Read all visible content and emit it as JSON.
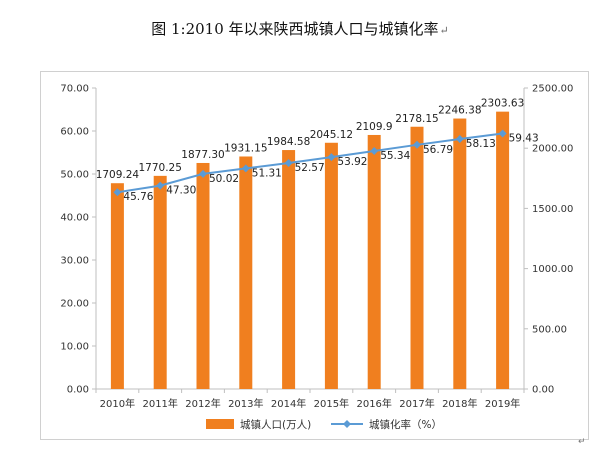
{
  "title": "图 1:2010 年以来陕西城镇人口与城镇化率",
  "title_mark": "↵",
  "trail_mark": "↵",
  "chart_data": {
    "type": "bar+line",
    "categories": [
      "2010年",
      "2011年",
      "2012年",
      "2013年",
      "2014年",
      "2015年",
      "2016年",
      "2017年",
      "2018年",
      "2019年"
    ],
    "series": [
      {
        "name": "城镇人口(万人)",
        "type": "bar",
        "axis": "right",
        "color": "#F07F1F",
        "values": [
          1709.24,
          1770.25,
          1877.3,
          1931.15,
          1984.58,
          2045.12,
          2109.9,
          2178.15,
          2246.38,
          2303.63
        ],
        "labels": [
          "1709.24",
          "1770.25",
          "1877.30",
          "1931.15",
          "1984.58",
          "2045.12",
          "2109.9",
          "2178.15",
          "2246.38",
          "2303.63"
        ]
      },
      {
        "name": "城镇化率（%）",
        "type": "line",
        "axis": "left",
        "color": "#5B9BD5",
        "values": [
          45.76,
          47.3,
          50.02,
          51.31,
          52.57,
          53.92,
          55.34,
          56.79,
          58.13,
          59.43
        ],
        "labels": [
          "45.76",
          "47.30",
          "50.02",
          "51.31",
          "52.57",
          "53.92",
          "55.34",
          "56.79",
          "58.13",
          "59.43"
        ]
      }
    ],
    "left_axis": {
      "range": [
        0,
        70
      ],
      "ticks": [
        0,
        10,
        20,
        30,
        40,
        50,
        60,
        70
      ],
      "tick_labels": [
        "0.00",
        "10.00",
        "20.00",
        "30.00",
        "40.00",
        "50.00",
        "60.00",
        "70.00"
      ]
    },
    "right_axis": {
      "range": [
        0,
        2500
      ],
      "ticks": [
        0,
        500,
        1000,
        1500,
        2000,
        2500
      ],
      "tick_labels": [
        "0.00",
        "500.00",
        "1000.00",
        "1500.00",
        "2000.00",
        "2500.00"
      ]
    },
    "grid": false,
    "legend_position": "bottom"
  }
}
